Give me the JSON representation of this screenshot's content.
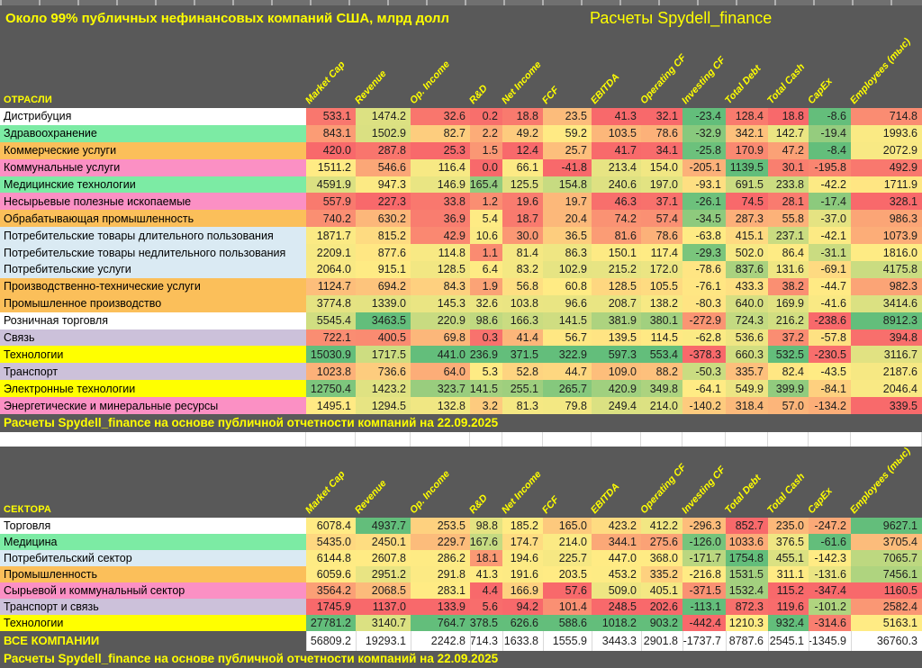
{
  "title": "Около 99% публичных нефинансовых компаний США, млрд долл",
  "credit": "Расчеты Spydell_finance",
  "note": "Расчеты Spydell_finance на основе публичной отчетности компаний на 22.09.2025",
  "columns": [
    "Market Cap",
    "Revenue",
    "Op. Income",
    "R&D",
    "Net Income",
    "FCF",
    "EBITDA",
    "Operating CF",
    "Investing CF",
    "Total Debt",
    "Total Cash",
    "CapEx",
    "Employees (тыс)"
  ],
  "colors": {
    "header_bg": "#595959",
    "accent_text": "#ffff00",
    "scale_min": "#F8696B",
    "scale_mid": "#FFEB84",
    "scale_max": "#63BE7B",
    "categories": {
      "white": "#ffffff",
      "green": "#7CEBA4",
      "orange": "#FBBF5A",
      "pink": "#FB90C4",
      "blue": "#DAEAF3",
      "purple": "#CCC1DA",
      "yellow": "#FFFF00"
    }
  },
  "tables": [
    {
      "header": "ОТРАСЛИ",
      "rows": [
        {
          "label": "Дистрибуция",
          "color": "white",
          "values": [
            533.1,
            1474.2,
            32.6,
            0.2,
            18.8,
            23.5,
            41.3,
            32.1,
            -23.4,
            128.4,
            18.8,
            -8.6,
            714.8
          ]
        },
        {
          "label": "Здравоохранение",
          "color": "green",
          "values": [
            843.1,
            1502.9,
            82.7,
            2.2,
            49.2,
            59.2,
            103.5,
            78.6,
            -32.9,
            342.1,
            142.7,
            -19.4,
            1993.6
          ]
        },
        {
          "label": "Коммерческие услуги",
          "color": "orange",
          "values": [
            420.0,
            287.8,
            25.3,
            1.5,
            12.4,
            25.7,
            41.7,
            34.1,
            -25.8,
            170.9,
            47.2,
            -8.4,
            2072.9
          ]
        },
        {
          "label": "Коммунальные услуги",
          "color": "pink",
          "values": [
            1511.2,
            546.6,
            116.4,
            0.0,
            66.1,
            -41.8,
            213.4,
            154.0,
            -205.1,
            1139.5,
            30.1,
            -195.8,
            492.9
          ]
        },
        {
          "label": "Медицинские технологии",
          "color": "green",
          "values": [
            4591.9,
            947.3,
            146.9,
            165.4,
            125.5,
            154.8,
            240.6,
            197.0,
            -93.1,
            691.5,
            233.8,
            -42.2,
            1711.9
          ]
        },
        {
          "label": "Несырьевые полезные ископаемые",
          "color": "pink",
          "values": [
            557.9,
            227.3,
            33.8,
            1.2,
            19.6,
            19.7,
            46.3,
            37.1,
            -26.1,
            74.5,
            28.1,
            -17.4,
            328.1
          ]
        },
        {
          "label": "Обрабатывающая промышленность",
          "color": "orange",
          "values": [
            740.2,
            630.2,
            36.9,
            5.4,
            18.7,
            20.4,
            74.2,
            57.4,
            -34.5,
            287.3,
            55.8,
            -37.0,
            986.3
          ]
        },
        {
          "label": "Потребительские товары длительного пользования",
          "color": "blue",
          "values": [
            1871.7,
            815.2,
            42.9,
            10.6,
            30.0,
            36.5,
            81.6,
            78.6,
            -63.8,
            415.1,
            237.1,
            -42.1,
            1073.9
          ]
        },
        {
          "label": "Потребительские товары недлительного пользования",
          "color": "blue",
          "values": [
            2209.1,
            877.6,
            114.8,
            1.1,
            81.4,
            86.3,
            150.1,
            117.4,
            -29.3,
            502.0,
            86.4,
            -31.1,
            1816.0
          ]
        },
        {
          "label": "Потребительские услуги",
          "color": "blue",
          "values": [
            2064.0,
            915.1,
            128.5,
            6.4,
            83.2,
            102.9,
            215.2,
            172.0,
            -78.6,
            837.6,
            131.6,
            -69.1,
            4175.8
          ]
        },
        {
          "label": "Производственно-технические услуги",
          "color": "orange",
          "values": [
            1124.7,
            694.2,
            84.3,
            1.9,
            56.8,
            60.8,
            128.5,
            105.5,
            -76.1,
            433.3,
            38.2,
            -44.7,
            982.3
          ]
        },
        {
          "label": "Промышленное производство",
          "color": "orange",
          "values": [
            3774.8,
            1339.0,
            145.3,
            32.6,
            103.8,
            96.6,
            208.7,
            138.2,
            -80.3,
            640.0,
            169.9,
            -41.6,
            3414.6
          ]
        },
        {
          "label": "Розничная торговля",
          "color": "white",
          "values": [
            5545.4,
            3463.5,
            220.9,
            98.6,
            166.3,
            141.5,
            381.9,
            380.1,
            -272.9,
            724.3,
            216.2,
            -238.6,
            8912.3
          ]
        },
        {
          "label": "Связь",
          "color": "purple",
          "values": [
            722.1,
            400.5,
            69.8,
            0.3,
            41.4,
            56.7,
            139.5,
            114.5,
            -62.8,
            536.6,
            37.2,
            -57.8,
            394.8
          ]
        },
        {
          "label": "Технологии",
          "color": "yellow",
          "values": [
            15030.9,
            1717.5,
            441.0,
            236.9,
            371.5,
            322.9,
            597.3,
            553.4,
            -378.3,
            660.3,
            532.5,
            -230.5,
            3116.7
          ]
        },
        {
          "label": "Транспорт",
          "color": "purple",
          "values": [
            1023.8,
            736.6,
            64.0,
            5.3,
            52.8,
            44.7,
            109.0,
            88.2,
            -50.3,
            335.7,
            82.4,
            -43.5,
            2187.6
          ]
        },
        {
          "label": "Электронные технологии",
          "color": "yellow",
          "values": [
            12750.4,
            1423.2,
            323.7,
            141.5,
            255.1,
            265.7,
            420.9,
            349.8,
            -64.1,
            549.9,
            399.9,
            -84.1,
            2046.4
          ]
        },
        {
          "label": "Энергетические и минеральные ресурсы",
          "color": "pink",
          "values": [
            1495.1,
            1294.5,
            132.8,
            3.2,
            81.3,
            79.8,
            249.4,
            214.0,
            -140.2,
            318.4,
            57.0,
            -134.2,
            339.5
          ]
        }
      ]
    },
    {
      "header": "СЕКТОРА",
      "rows": [
        {
          "label": "Торговля",
          "color": "white",
          "values": [
            6078.4,
            4937.7,
            253.5,
            98.8,
            185.2,
            165.0,
            423.2,
            412.2,
            -296.3,
            852.7,
            235.0,
            -247.2,
            9627.1
          ]
        },
        {
          "label": "Медицина",
          "color": "green",
          "values": [
            5435.0,
            2450.1,
            229.7,
            167.6,
            174.7,
            214.0,
            344.1,
            275.6,
            -126.0,
            1033.6,
            376.5,
            -61.6,
            3705.4
          ]
        },
        {
          "label": "Потребительский сектор",
          "color": "blue",
          "values": [
            6144.8,
            2607.8,
            286.2,
            18.1,
            194.6,
            225.7,
            447.0,
            368.0,
            -171.7,
            1754.8,
            455.1,
            -142.3,
            7065.7
          ]
        },
        {
          "label": "Промышленность",
          "color": "orange",
          "values": [
            6059.6,
            2951.2,
            291.8,
            41.3,
            191.6,
            203.5,
            453.2,
            335.2,
            -216.8,
            1531.5,
            311.1,
            -131.6,
            7456.1
          ]
        },
        {
          "label": "Сырьевой и коммунальный сектор",
          "color": "pink",
          "values": [
            3564.2,
            2068.5,
            283.1,
            4.4,
            166.9,
            57.6,
            509.0,
            405.1,
            -371.5,
            1532.4,
            115.2,
            -347.4,
            1160.5
          ]
        },
        {
          "label": "Транспорт и связь",
          "color": "purple",
          "values": [
            1745.9,
            1137.0,
            133.9,
            5.6,
            94.2,
            101.4,
            248.5,
            202.6,
            -113.1,
            872.3,
            119.6,
            -101.2,
            2582.4
          ]
        },
        {
          "label": "Технологии",
          "color": "yellow",
          "values": [
            27781.2,
            3140.7,
            764.7,
            378.5,
            626.6,
            588.6,
            1018.2,
            903.2,
            -442.4,
            1210.3,
            932.4,
            -314.6,
            5163.1
          ]
        }
      ],
      "total": {
        "label": "ВСЕ КОМПАНИИ",
        "values": [
          56809.2,
          19293.1,
          2242.8,
          714.3,
          1633.8,
          1555.9,
          3443.3,
          2901.8,
          -1737.7,
          8787.6,
          2545.1,
          -1345.9,
          36760.3
        ]
      }
    }
  ]
}
